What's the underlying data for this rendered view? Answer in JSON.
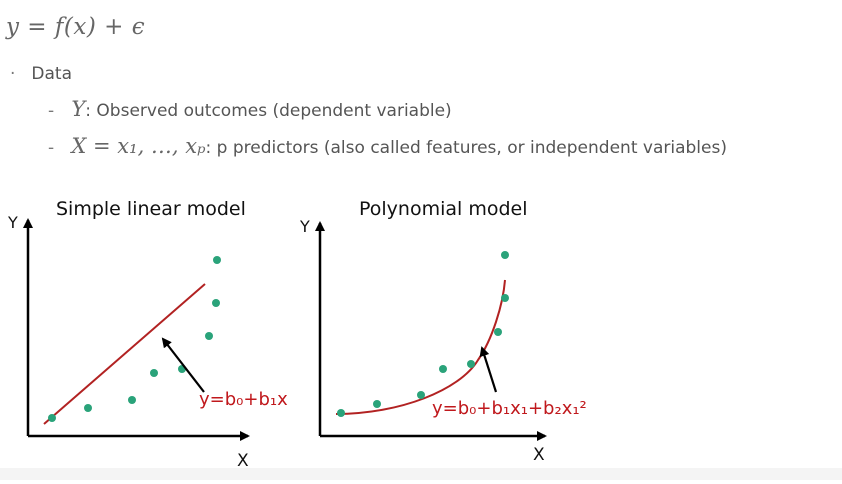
{
  "formula": "y = f(x) + ϵ",
  "bullet": {
    "label": "Data"
  },
  "items": [
    {
      "math": "Y",
      "text": ": Observed outcomes (dependent variable)"
    },
    {
      "math": "X = x₁, …, xₚ",
      "text": ": p predictors (also called features, or independent variables)"
    }
  ],
  "figure": {
    "left": {
      "title": "Simple linear model",
      "ylabel": "Y",
      "xlabel": "X",
      "equation": "y=b₀+b₁x"
    },
    "right": {
      "title": "Polynomial model",
      "ylabel": "Y",
      "xlabel": "X",
      "equation": "y=b₀+b₁x₁+b₂x₁²"
    },
    "colors": {
      "points": "#2aa37a",
      "line": "#b22222",
      "axis": "#000000"
    }
  }
}
